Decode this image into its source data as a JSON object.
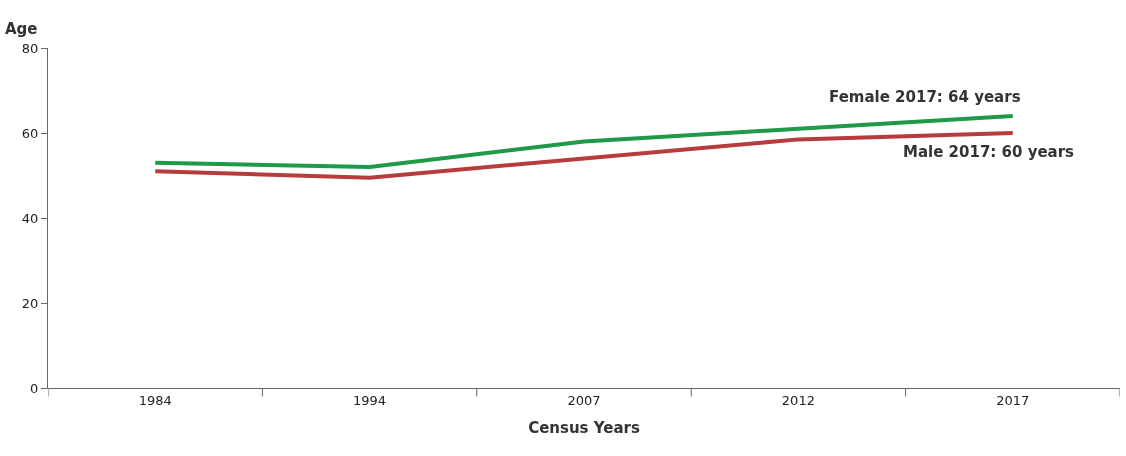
{
  "chart_data": {
    "type": "line",
    "xlabel": "Census Years",
    "ylabel": "Age",
    "categories": [
      "1984",
      "1994",
      "2007",
      "2012",
      "2017"
    ],
    "series": [
      {
        "color": "#1e9a48",
        "values": [
          53,
          52,
          58,
          61,
          64
        ]
      },
      {
        "color": "#b93c3c",
        "values": [
          51,
          49.5,
          54,
          58.5,
          60
        ]
      }
    ],
    "ylim": [
      0,
      80
    ],
    "yticks": [
      0,
      20,
      40,
      60,
      80
    ],
    "legend": false,
    "marker": "none",
    "line_style": "solid",
    "annotations": [
      {
        "text": "Female 2017: 64 years",
        "x": "2017",
        "y": 64
      },
      {
        "text": "Male 2017: 60 years",
        "x": "2017",
        "y": 60
      }
    ]
  }
}
